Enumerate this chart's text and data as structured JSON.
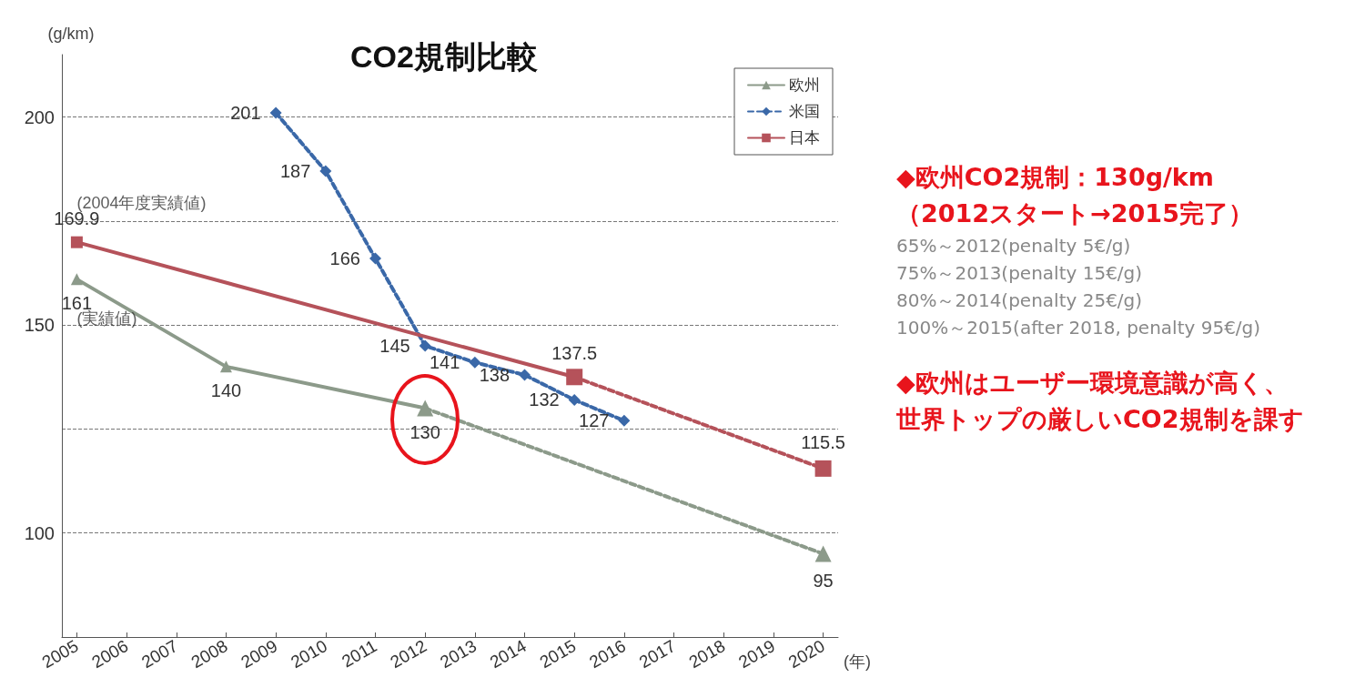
{
  "chart_data": {
    "type": "line",
    "title": "CO2規制比較",
    "xlabel": "(年)",
    "ylabel": "(g/km)",
    "xlim": [
      2004.7,
      2020.3
    ],
    "xticks": [
      2005,
      2006,
      2007,
      2008,
      2009,
      2010,
      2011,
      2012,
      2013,
      2014,
      2015,
      2016,
      2017,
      2018,
      2019,
      2020
    ],
    "ylim": [
      75,
      215
    ],
    "yticks": [
      100,
      {
        "value": 125,
        "label": null
      },
      150,
      {
        "value": 175,
        "label": null
      },
      200
    ],
    "grid": "y",
    "legend": "top right",
    "series": [
      {
        "name": "欧州",
        "color": "#8c9a8a",
        "marker": "triangle",
        "line_style": "solid",
        "x": [
          2005,
          2008,
          2012
        ],
        "values": [
          161,
          140,
          130
        ],
        "value_labels": [
          "161",
          "140",
          "130"
        ]
      },
      {
        "name": "米国",
        "color": "#3a68a8",
        "marker": "diamond",
        "line_style": "dashed",
        "x": [
          2009,
          2010,
          2011,
          2012,
          2013,
          2014,
          2015,
          2016
        ],
        "values": [
          201,
          187,
          166,
          145,
          141,
          138,
          132,
          127
        ],
        "value_labels": [
          "201",
          "187",
          "166",
          "145",
          "141",
          "138",
          "132",
          "127"
        ]
      },
      {
        "name": "日本",
        "color": "#b5525a",
        "marker": "square",
        "line_style": "solid",
        "x": [
          2005,
          2015
        ],
        "values": [
          169.9,
          137.5
        ],
        "value_labels": [
          "169.9",
          "137.5"
        ]
      },
      {
        "color": "#8c9a8a",
        "marker": "triangle",
        "line_style": "dashed",
        "x": [
          2012,
          2020
        ],
        "values": [
          130,
          95
        ],
        "value_labels": [
          null,
          "95"
        ]
      },
      {
        "color": "#b5525a",
        "marker": "square",
        "line_style": "dashed",
        "x": [
          2015,
          2020
        ],
        "values": [
          137.5,
          115.5
        ],
        "value_labels": [
          null,
          "115.5"
        ]
      }
    ],
    "annotations": [
      {
        "text": "(2004年度実績値)",
        "x": 2005,
        "y": 169.9
      },
      {
        "text": "(実績値)",
        "x": 2005,
        "y": 161
      },
      "◆欧州CO2規制：130g/km",
      "（2012スタート→2015完了）",
      "65%～2012(penalty 5€/g)",
      "75%～2013(penalty 15€/g)",
      "80%～2014(penalty 25€/g)",
      "100%～2015(after 2018, penalty 95€/g)",
      "◆欧州はユーザー環境意識が高く、",
      "世界トップの厳しいCO2規制を課す"
    ]
  }
}
